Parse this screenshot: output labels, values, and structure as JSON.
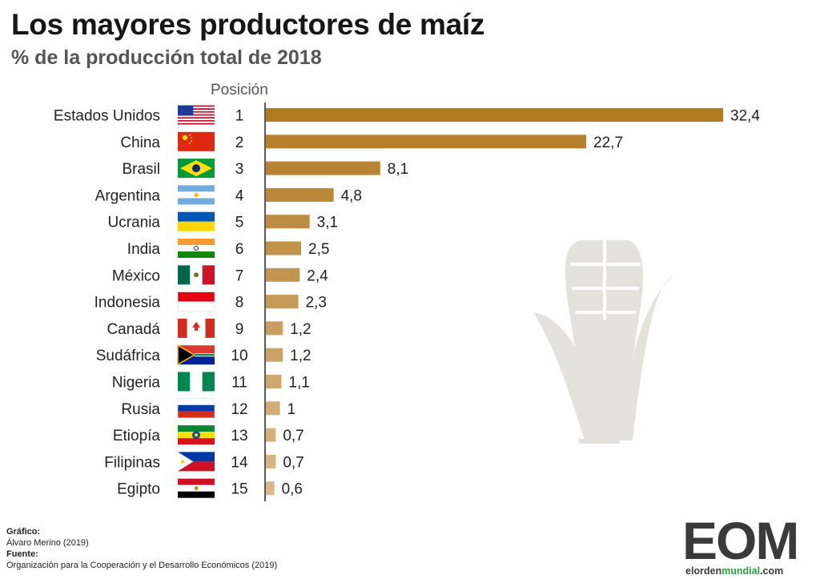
{
  "header": {
    "title": "Los mayores productores de maíz",
    "subtitle": "% de la producción total de 2018",
    "position_label": "Posición"
  },
  "chart_data": {
    "type": "bar",
    "orientation": "horizontal",
    "title": "Los mayores productores de maíz",
    "subtitle": "% de la producción total de 2018",
    "categories": [
      "Estados Unidos",
      "China",
      "Brasil",
      "Argentina",
      "Ucrania",
      "India",
      "México",
      "Indonesia",
      "Canadá",
      "Sudáfrica",
      "Nigeria",
      "Rusia",
      "Etiopía",
      "Filipinas",
      "Egipto"
    ],
    "positions": [
      "1",
      "2",
      "3",
      "4",
      "5",
      "6",
      "7",
      "8",
      "9",
      "10",
      "11",
      "12",
      "13",
      "14",
      "15"
    ],
    "values": [
      32.4,
      22.7,
      8.1,
      4.8,
      3.1,
      2.5,
      2.4,
      2.3,
      1.2,
      1.2,
      1.1,
      1,
      0.7,
      0.7,
      0.6
    ],
    "value_labels": [
      "32,4",
      "22,7",
      "8,1",
      "4,8",
      "3,1",
      "2,5",
      "2,4",
      "2,3",
      "1,2",
      "1,2",
      "1,1",
      "1",
      "0,7",
      "0,7",
      "0,6"
    ],
    "xlim": [
      0,
      32.4
    ],
    "grid": false,
    "bar_color_gradient": [
      "#b37a24",
      "#d9b98a"
    ],
    "flags": [
      "us-flag",
      "cn-flag",
      "br-flag",
      "ar-flag",
      "ua-flag",
      "in-flag",
      "mx-flag",
      "id-flag",
      "ca-flag",
      "za-flag",
      "ng-flag",
      "ru-flag",
      "et-flag",
      "ph-flag",
      "eg-flag"
    ]
  },
  "credits": {
    "chart_label": "Gráfico:",
    "chart_author": "Álvaro Merino (2019)",
    "source_label": "Fuente:",
    "source_text": "Organización para la Cooperación y el Desarrollo Económicos (2019)"
  },
  "logo": {
    "letters": "EOM",
    "url_prefix": "elorden",
    "url_highlight": "mundial",
    "url_suffix": ".com"
  }
}
